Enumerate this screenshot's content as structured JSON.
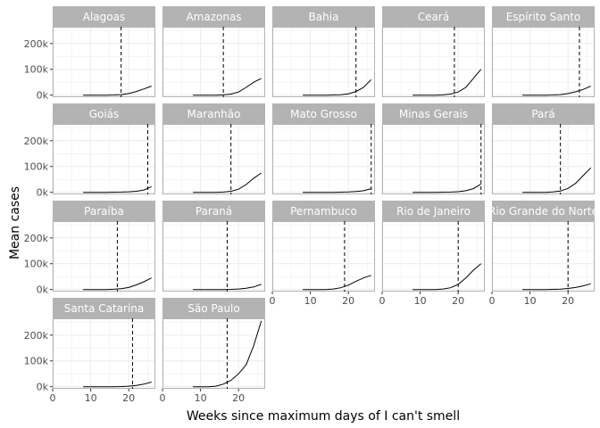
{
  "chart_data": {
    "type": "line",
    "layout": "facet-wrap",
    "xlabel": "Weeks since maximum days of I can't smell",
    "ylabel": "Mean cases",
    "xlim": [
      0,
      27
    ],
    "ylim": [
      -8000,
      265000
    ],
    "x_ticks": [
      0,
      10,
      20
    ],
    "x_tick_labels": [
      "0",
      "10",
      "20"
    ],
    "y_ticks": [
      0,
      100000,
      200000
    ],
    "y_tick_labels": [
      "0k",
      "100k",
      "200k"
    ],
    "grid": true,
    "colors": {
      "strip_fill": "#b3b3b3",
      "strip_text": "#ffffff",
      "grid": "#ebebeb",
      "panel_border": "#b3b3b3",
      "line": "#000000",
      "vline": "#000000"
    },
    "facets": [
      {
        "name": "Alagoas",
        "vline": 18,
        "x": [
          8,
          10,
          12,
          14,
          16,
          18,
          20,
          22,
          24,
          26
        ],
        "y": [
          0,
          0,
          0,
          0,
          500,
          2000,
          6000,
          14000,
          24000,
          35000
        ]
      },
      {
        "name": "Amazonas",
        "vline": 16,
        "x": [
          8,
          10,
          12,
          14,
          16,
          18,
          20,
          22,
          24,
          26
        ],
        "y": [
          0,
          0,
          0,
          0,
          1000,
          4000,
          12000,
          30000,
          50000,
          65000
        ]
      },
      {
        "name": "Bahia",
        "vline": 22,
        "x": [
          8,
          10,
          12,
          14,
          16,
          18,
          20,
          22,
          24,
          26
        ],
        "y": [
          0,
          0,
          0,
          0,
          500,
          1500,
          5000,
          14000,
          30000,
          60000
        ]
      },
      {
        "name": "Ceará",
        "vline": 19,
        "x": [
          8,
          10,
          12,
          14,
          16,
          18,
          20,
          22,
          24,
          26
        ],
        "y": [
          0,
          0,
          0,
          0,
          1000,
          4000,
          12000,
          30000,
          65000,
          100000
        ]
      },
      {
        "name": "Espírito Santo",
        "vline": 23,
        "x": [
          8,
          10,
          12,
          14,
          16,
          18,
          20,
          22,
          24,
          26
        ],
        "y": [
          0,
          0,
          0,
          0,
          500,
          2000,
          6000,
          13000,
          22000,
          35000
        ]
      },
      {
        "name": "Goiás",
        "vline": 25,
        "x": [
          8,
          10,
          12,
          14,
          16,
          18,
          20,
          22,
          24,
          26
        ],
        "y": [
          0,
          0,
          0,
          0,
          500,
          1000,
          2000,
          4000,
          9000,
          22000
        ]
      },
      {
        "name": "Maranhão",
        "vline": 18,
        "x": [
          8,
          10,
          12,
          14,
          16,
          18,
          20,
          22,
          24,
          26
        ],
        "y": [
          0,
          0,
          0,
          0,
          1000,
          4000,
          12000,
          30000,
          55000,
          75000
        ]
      },
      {
        "name": "Mato Grosso",
        "vline": 26,
        "x": [
          8,
          10,
          12,
          14,
          16,
          18,
          20,
          22,
          24,
          26
        ],
        "y": [
          0,
          0,
          0,
          0,
          0,
          500,
          1500,
          3000,
          6000,
          14000
        ]
      },
      {
        "name": "Minas Gerais",
        "vline": 26,
        "x": [
          8,
          10,
          12,
          14,
          16,
          18,
          20,
          22,
          24,
          26
        ],
        "y": [
          0,
          0,
          0,
          0,
          500,
          1000,
          2500,
          6000,
          14000,
          32000
        ]
      },
      {
        "name": "Pará",
        "vline": 18,
        "x": [
          8,
          10,
          12,
          14,
          16,
          18,
          20,
          22,
          24,
          26
        ],
        "y": [
          0,
          0,
          0,
          0,
          1500,
          5000,
          15000,
          35000,
          65000,
          95000
        ]
      },
      {
        "name": "Paraíba",
        "vline": 17,
        "x": [
          8,
          10,
          12,
          14,
          16,
          18,
          20,
          22,
          24,
          26
        ],
        "y": [
          0,
          0,
          0,
          0,
          1000,
          3000,
          8000,
          18000,
          30000,
          45000
        ]
      },
      {
        "name": "Paraná",
        "vline": 17,
        "x": [
          8,
          10,
          12,
          14,
          16,
          18,
          20,
          22,
          24,
          26
        ],
        "y": [
          0,
          0,
          0,
          0,
          0,
          500,
          2000,
          5000,
          10000,
          20000
        ]
      },
      {
        "name": "Pernambuco",
        "vline": 19,
        "x": [
          8,
          10,
          12,
          14,
          16,
          18,
          20,
          22,
          24,
          26
        ],
        "y": [
          0,
          0,
          0,
          0,
          2000,
          7000,
          17000,
          32000,
          45000,
          55000
        ]
      },
      {
        "name": "Rio de Janeiro",
        "vline": 20,
        "x": [
          8,
          10,
          12,
          14,
          16,
          18,
          20,
          22,
          24,
          26
        ],
        "y": [
          0,
          0,
          0,
          0,
          2000,
          7000,
          20000,
          45000,
          75000,
          100000
        ]
      },
      {
        "name": "Rio Grande do Norte",
        "vline": 20,
        "x": [
          8,
          10,
          12,
          14,
          16,
          18,
          20,
          22,
          24,
          26
        ],
        "y": [
          0,
          0,
          0,
          0,
          500,
          1500,
          4000,
          8000,
          14000,
          22000
        ]
      },
      {
        "name": "Santa Catarina",
        "vline": 21,
        "x": [
          8,
          10,
          12,
          14,
          16,
          18,
          20,
          22,
          24,
          26
        ],
        "y": [
          0,
          0,
          0,
          0,
          0,
          500,
          2000,
          5000,
          10000,
          18000
        ]
      },
      {
        "name": "São Paulo",
        "vline": 17,
        "x": [
          8,
          10,
          12,
          14,
          16,
          18,
          20,
          22,
          24,
          26
        ],
        "y": [
          0,
          0,
          0,
          2000,
          10000,
          25000,
          50000,
          85000,
          160000,
          255000
        ]
      }
    ]
  }
}
